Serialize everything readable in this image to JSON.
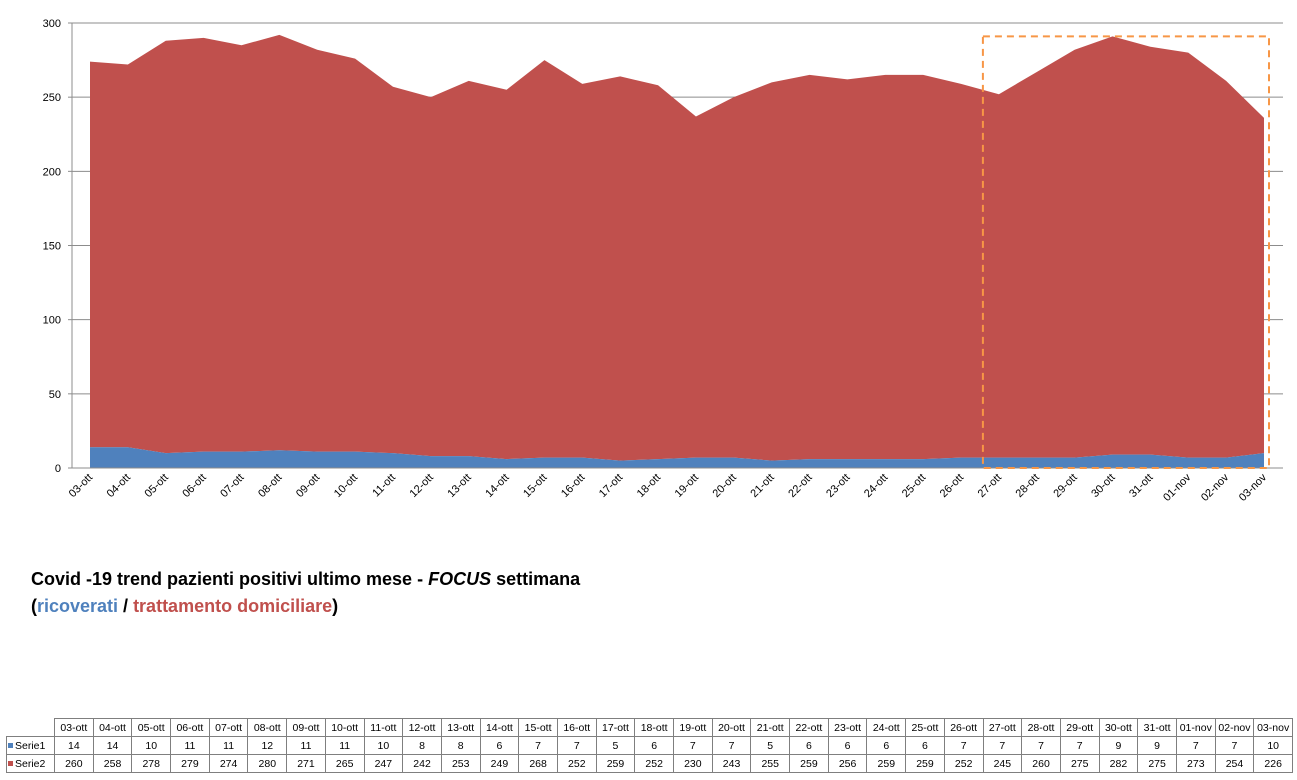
{
  "chart_data": {
    "type": "area",
    "stacked": true,
    "categories": [
      "03-ott",
      "04-ott",
      "05-ott",
      "06-ott",
      "07-ott",
      "08-ott",
      "09-ott",
      "10-ott",
      "11-ott",
      "12-ott",
      "13-ott",
      "14-ott",
      "15-ott",
      "16-ott",
      "17-ott",
      "18-ott",
      "19-ott",
      "20-ott",
      "21-ott",
      "22-ott",
      "23-ott",
      "24-ott",
      "25-ott",
      "26-ott",
      "27-ott",
      "28-ott",
      "29-ott",
      "30-ott",
      "31-ott",
      "01-nov",
      "02-nov",
      "03-nov"
    ],
    "series": [
      {
        "name": "Serie1",
        "color": "#4f81bd",
        "values": [
          14,
          14,
          10,
          11,
          11,
          12,
          11,
          11,
          10,
          8,
          8,
          6,
          7,
          7,
          5,
          6,
          7,
          7,
          5,
          6,
          6,
          6,
          6,
          7,
          7,
          7,
          7,
          9,
          9,
          7,
          7,
          10
        ]
      },
      {
        "name": "Serie2",
        "color": "#c0504d",
        "values": [
          260,
          258,
          278,
          279,
          274,
          280,
          271,
          265,
          247,
          242,
          253,
          249,
          268,
          252,
          259,
          252,
          230,
          243,
          255,
          259,
          256,
          259,
          259,
          252,
          245,
          260,
          275,
          282,
          275,
          273,
          254,
          226
        ]
      }
    ],
    "ylim": [
      0,
      300
    ],
    "yticks": [
      0,
      50,
      100,
      150,
      200,
      250,
      300
    ],
    "grid": true,
    "highlight": {
      "from": "27-ott",
      "to": "03-nov",
      "color": "#f79646",
      "style": "dashed"
    }
  },
  "caption": {
    "line1_a": "Covid -19 trend pazienti positivi ultimo mese - ",
    "line1_focus": "FOCUS",
    "line1_b": " settimana",
    "open_paren": "(",
    "ricoverati": "ricoverati",
    "slash": " / ",
    "trattamento": "trattamento domiciliare",
    "close_paren": ")"
  }
}
